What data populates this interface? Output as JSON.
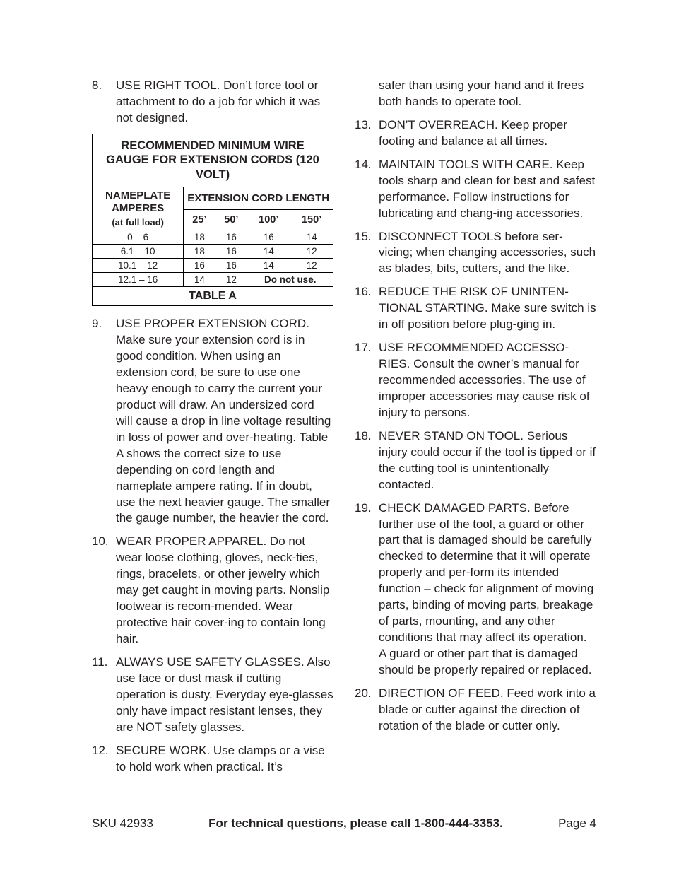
{
  "left": {
    "item8": {
      "num": "8.",
      "text": "USE RIGHT TOOL. Don’t force tool or attachment to do a job for which it was not designed."
    },
    "table": {
      "title": "RECOMMENDED MINIMUM WIRE GAUGE FOR EXTENSION CORDS (120 VOLT)",
      "nameplate_line1": "NAMEPLATE",
      "nameplate_line2": "AMPERES",
      "nameplate_sub": "(at full load)",
      "ext_header": "EXTENSION CORD LENGTH",
      "lengths": [
        "25’",
        "50’",
        "100’",
        "150’"
      ],
      "rows": [
        {
          "amps": "0 – 6",
          "v": [
            "18",
            "16",
            "16",
            "14"
          ]
        },
        {
          "amps": "6.1 – 10",
          "v": [
            "18",
            "16",
            "14",
            "12"
          ]
        },
        {
          "amps": "10.1 – 12",
          "v": [
            "16",
            "16",
            "14",
            "12"
          ]
        },
        {
          "amps": "12.1 – 16",
          "v": [
            "14",
            "12"
          ],
          "merged": "Do not use."
        }
      ],
      "label": "TABLE A"
    },
    "item9": {
      "num": "9.",
      "text": "USE PROPER EXTENSION CORD. Make sure your extension cord is in good condition. When using an extension cord, be sure to use one heavy enough to carry the current your product will draw. An undersized cord will cause a drop in line voltage resulting in loss of power and over-heating.  Table A shows the correct size to use depending on cord length and nameplate ampere rating. If in doubt, use the next heavier gauge. The smaller the gauge number, the heavier the cord."
    },
    "item10": {
      "num": "10.",
      "text": "WEAR PROPER APPAREL. Do not wear loose clothing, gloves, neck-ties, rings, bracelets, or other jewelry which may get caught in moving parts. Nonslip footwear is recom-mended. Wear protective hair cover-ing to contain long hair."
    },
    "item11": {
      "num": "11.",
      "text": "ALWAYS USE SAFETY GLASSES. Also use face or dust mask if cutting operation is dusty. Everyday eye-glasses only have impact resistant lenses, they are NOT safety glasses."
    },
    "item12": {
      "num": "12.",
      "text": "SECURE WORK. Use clamps or a vise to hold work when practical. It’s "
    }
  },
  "right": {
    "cont": {
      "text": "safer than using your hand and it frees both hands to operate tool."
    },
    "item13": {
      "num": "13.",
      "text": "DON’T OVERREACH. Keep proper footing and balance at all times."
    },
    "item14": {
      "num": "14.",
      "text": "MAINTAIN TOOLS WITH CARE. Keep tools sharp and clean for best and safest performance. Follow instructions for lubricating and chang-ing accessories."
    },
    "item15": {
      "num": "15.",
      "text": "DISCONNECT TOOLS before ser-vicing; when changing accessories, such as blades, bits, cutters, and the like."
    },
    "item16": {
      "num": "16.",
      "text": "REDUCE THE RISK OF UNINTEN-TIONAL STARTING. Make sure switch is in off position before plug-ging in."
    },
    "item17": {
      "num": "17.",
      "text": "USE RECOMMENDED ACCESSO-RIES. Consult the owner’s manual for recommended accessories. The use of improper accessories may cause risk of injury to persons."
    },
    "item18": {
      "num": "18.",
      "text": "NEVER STAND ON TOOL. Serious injury could occur if the tool is tipped or if the cutting tool is unintentionally contacted."
    },
    "item19": {
      "num": "19.",
      "text": "CHECK DAMAGED PARTS. Before further use of the tool, a guard or other part that is damaged should be carefully checked to determine that it will operate properly and per-form its intended function – check for alignment of moving parts, binding of moving parts, breakage of parts, mounting, and any other conditions that may affect its operation. A guard or other part that is damaged should be properly repaired or replaced."
    },
    "item20": {
      "num": "20.",
      "text": "DIRECTION OF FEED. Feed work into a blade or cutter against the direction of rotation of the blade or cutter only."
    }
  },
  "footer": {
    "sku": "SKU 42933",
    "center": "For technical questions, please call 1-800-444-3353.",
    "page": "Page 4"
  }
}
